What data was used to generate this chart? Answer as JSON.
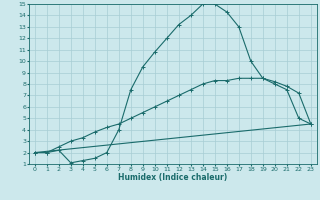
{
  "xlabel": "Humidex (Indice chaleur)",
  "xlim": [
    -0.5,
    23.5
  ],
  "ylim": [
    1,
    15
  ],
  "xticks": [
    0,
    1,
    2,
    3,
    4,
    5,
    6,
    7,
    8,
    9,
    10,
    11,
    12,
    13,
    14,
    15,
    16,
    17,
    18,
    19,
    20,
    21,
    22,
    23
  ],
  "yticks": [
    1,
    2,
    3,
    4,
    5,
    6,
    7,
    8,
    9,
    10,
    11,
    12,
    13,
    14,
    15
  ],
  "bg_color": "#cce8ec",
  "grid_color": "#a8cdd4",
  "line_color": "#1a6b6b",
  "line1_x": [
    0,
    1,
    2,
    3,
    4,
    5,
    6,
    7,
    8,
    9,
    10,
    11,
    12,
    13,
    14,
    15,
    16,
    17,
    18,
    19,
    20,
    21,
    22,
    23
  ],
  "line1_y": [
    2.0,
    2.0,
    2.2,
    1.1,
    1.3,
    1.5,
    2.0,
    4.0,
    7.5,
    9.5,
    10.8,
    12.0,
    13.2,
    14.0,
    15.0,
    15.0,
    14.3,
    13.0,
    10.0,
    8.5,
    8.0,
    7.5,
    5.0,
    4.5
  ],
  "line2_x": [
    0,
    1,
    2,
    3,
    4,
    5,
    6,
    7,
    8,
    9,
    10,
    11,
    12,
    13,
    14,
    15,
    16,
    17,
    18,
    19,
    20,
    21,
    22,
    23
  ],
  "line2_y": [
    2.0,
    2.0,
    2.5,
    3.0,
    3.3,
    3.8,
    4.2,
    4.5,
    5.0,
    5.5,
    6.0,
    6.5,
    7.0,
    7.5,
    8.0,
    8.3,
    8.3,
    8.5,
    8.5,
    8.5,
    8.2,
    7.8,
    7.2,
    4.5
  ],
  "line3_x": [
    0,
    23
  ],
  "line3_y": [
    2.0,
    4.5
  ]
}
